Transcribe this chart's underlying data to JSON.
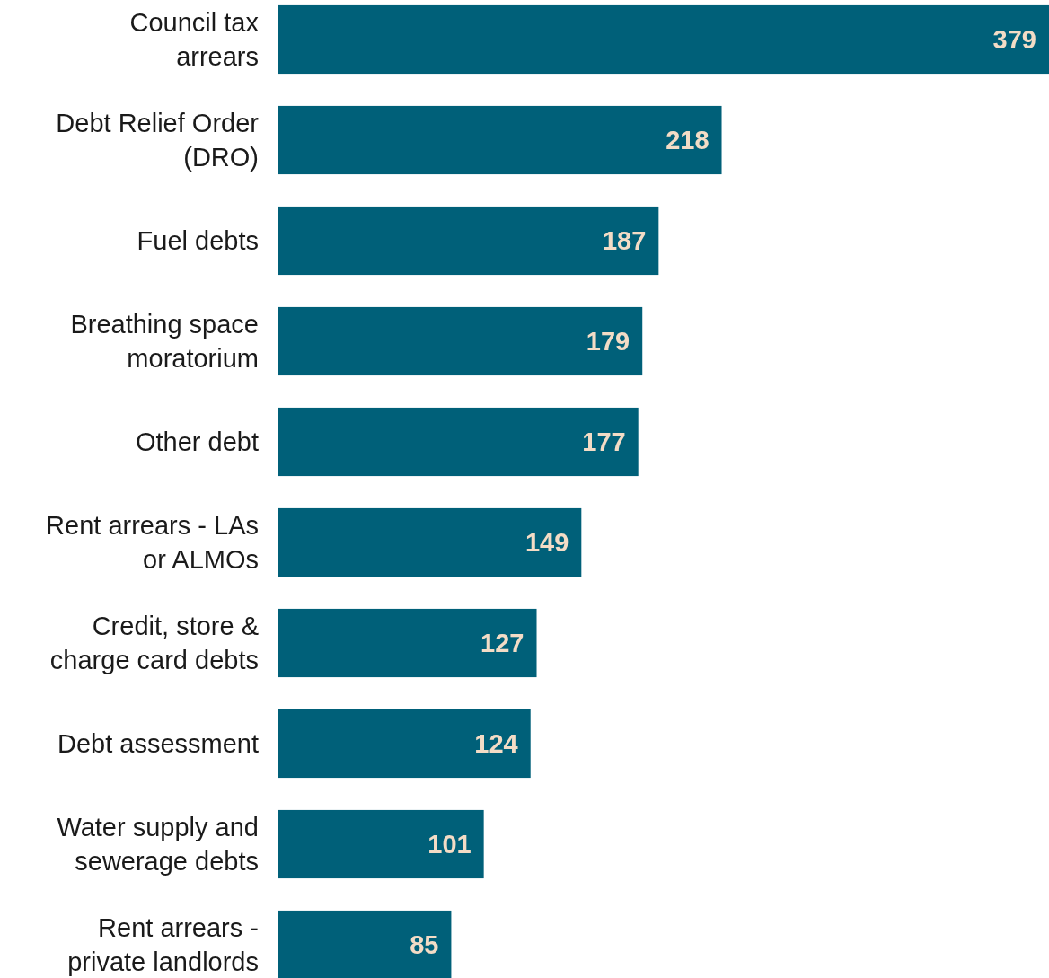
{
  "chart_data": {
    "type": "bar",
    "orientation": "horizontal",
    "categories": [
      "Council tax arrears",
      "Debt Relief Order (DRO)",
      "Fuel debts",
      "Breathing space moratorium",
      "Other debt",
      "Rent arrears - LAs or ALMOs",
      "Credit, store & charge card debts",
      "Debt assessment",
      "Water supply and sewerage debts",
      "Rent arrears - private landlords"
    ],
    "values": [
      379,
      218,
      187,
      179,
      177,
      149,
      127,
      124,
      101,
      85
    ],
    "color": "#006079",
    "xlim": [
      0,
      379
    ],
    "data_labels": true,
    "tick_labels": "y"
  }
}
